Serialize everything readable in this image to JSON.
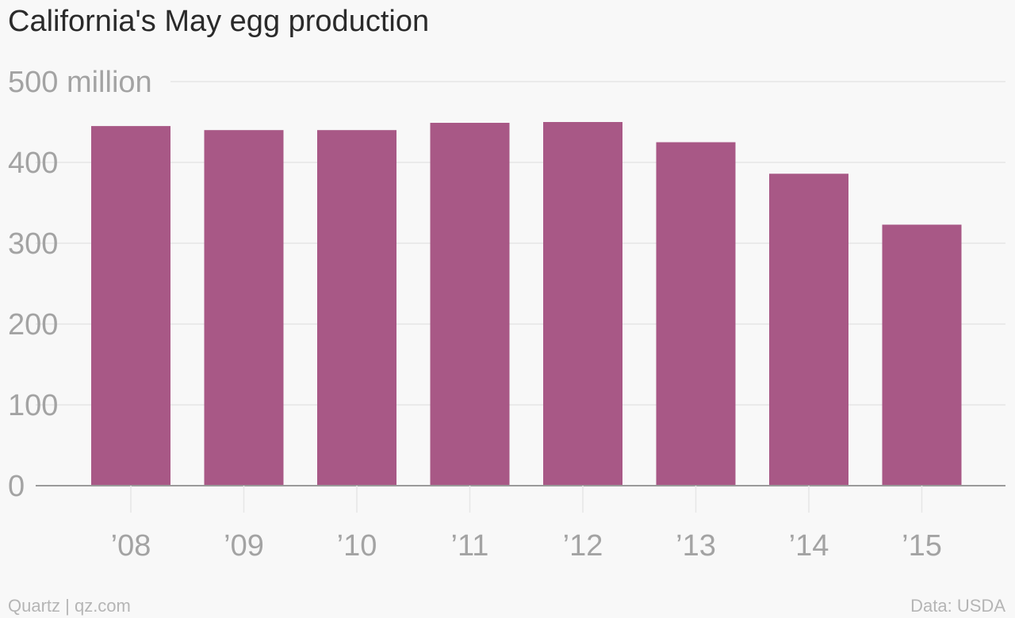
{
  "title": "California's May egg production",
  "footer": {
    "source_left": "Quartz | qz.com",
    "source_right": "Data: USDA"
  },
  "colors": {
    "bar": "#a85886",
    "grid": "#e6e6e6",
    "axis": "#9a9a9a",
    "tick_text": "#a3a3a3",
    "background": "#f8f8f8"
  },
  "chart_data": {
    "type": "bar",
    "title": "California's May egg production",
    "xlabel": "",
    "ylabel": "",
    "categories": [
      "’08",
      "’09",
      "’10",
      "’11",
      "’12",
      "’13",
      "’14",
      "’15"
    ],
    "values": [
      445,
      440,
      440,
      449,
      450,
      425,
      386,
      323
    ],
    "ylim": [
      0,
      500
    ],
    "yticks": [
      0,
      100,
      200,
      300,
      400,
      500
    ],
    "ytick_labels": [
      "0",
      "100",
      "200",
      "300",
      "400",
      "500 million"
    ],
    "grid": true,
    "legend": "none"
  }
}
